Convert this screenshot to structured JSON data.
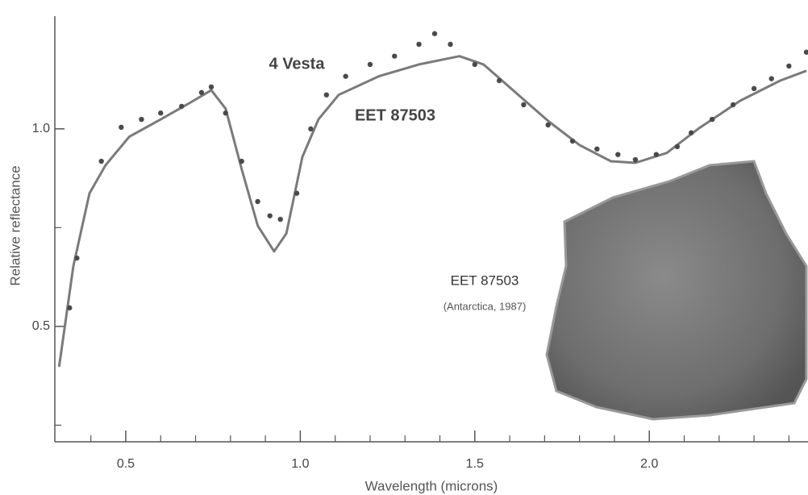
{
  "chart_data": {
    "type": "line",
    "xlabel": "Wavelength (microns)",
    "ylabel": "Relative reflectance",
    "xlim": [
      0.3,
      2.45
    ],
    "ylim": [
      0.21,
      1.32
    ],
    "xticks": [
      0.5,
      {
        "value": 1,
        "label": "1.0"
      },
      1.5,
      {
        "value": 2,
        "label": "2.0"
      }
    ],
    "xminorticks": [
      0.4,
      0.6,
      0.7,
      0.8,
      0.9,
      1.1,
      1.2,
      1.3,
      1.4,
      1.6,
      1.7,
      1.8,
      1.9,
      2.1,
      2.2,
      2.3,
      2.4
    ],
    "yticks": [
      0.5,
      {
        "value": 1,
        "label": "1.0"
      }
    ],
    "yminorticks": [
      0.25,
      0.75
    ],
    "series": [
      {
        "name": "EET 87503",
        "color": "#7a7a7a",
        "style": "line",
        "x": [
          0.309,
          0.35,
          0.396,
          0.442,
          0.51,
          0.6,
          0.694,
          0.745,
          0.786,
          0.832,
          0.878,
          0.925,
          0.96,
          1.006,
          1.052,
          1.11,
          1.225,
          1.34,
          1.456,
          1.525,
          1.617,
          1.71,
          1.8,
          1.89,
          1.96,
          2.05,
          2.14,
          2.26,
          2.375,
          2.45
        ],
        "values": [
          0.398,
          0.653,
          0.837,
          0.908,
          0.98,
          1.024,
          1.071,
          1.098,
          1.051,
          0.898,
          0.755,
          0.69,
          0.735,
          0.929,
          1.024,
          1.086,
          1.133,
          1.163,
          1.184,
          1.163,
          1.092,
          1.02,
          0.959,
          0.918,
          0.914,
          0.939,
          1.0,
          1.071,
          1.122,
          1.147
        ]
      },
      {
        "name": "4 Vesta",
        "color": "#4a4a4a",
        "style": "dots",
        "x": [
          0.339,
          0.36,
          0.43,
          0.487,
          0.545,
          0.6,
          0.66,
          0.717,
          0.745,
          0.786,
          0.832,
          0.878,
          0.913,
          0.943,
          0.99,
          1.03,
          1.075,
          1.13,
          1.2,
          1.27,
          1.34,
          1.385,
          1.43,
          1.5,
          1.57,
          1.64,
          1.71,
          1.78,
          1.85,
          1.91,
          1.96,
          2.02,
          2.08,
          2.12,
          2.18,
          2.24,
          2.3,
          2.35,
          2.4,
          2.45
        ],
        "values": [
          0.547,
          0.673,
          0.918,
          1.004,
          1.024,
          1.04,
          1.057,
          1.092,
          1.106,
          1.04,
          0.918,
          0.816,
          0.78,
          0.771,
          0.837,
          1.0,
          1.086,
          1.133,
          1.163,
          1.184,
          1.214,
          1.241,
          1.214,
          1.163,
          1.122,
          1.061,
          1.01,
          0.969,
          0.949,
          0.935,
          0.922,
          0.935,
          0.955,
          0.99,
          1.024,
          1.061,
          1.102,
          1.127,
          1.159,
          1.194
        ]
      }
    ],
    "rock_caption": "EET 87503",
    "rock_subcaption": "(Antarctica, 1987)"
  }
}
